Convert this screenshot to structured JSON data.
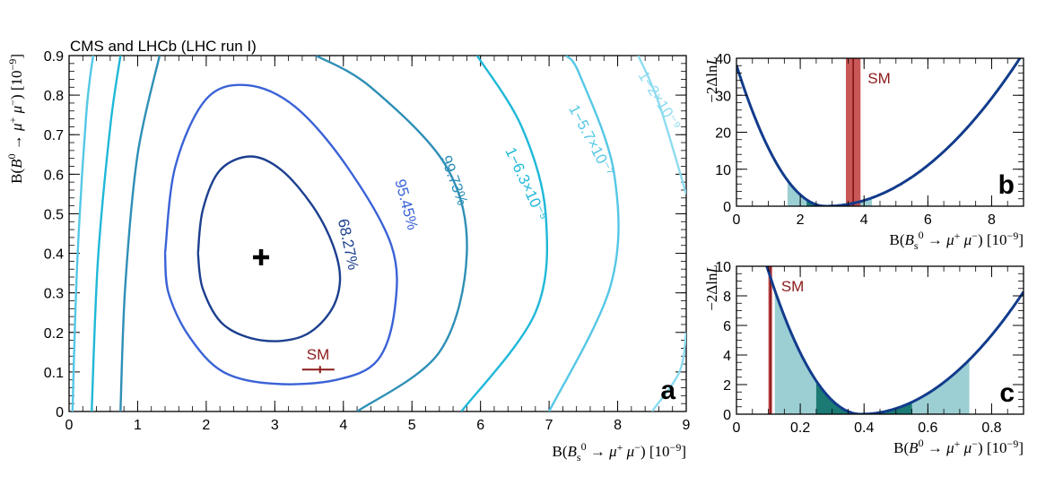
{
  "title": "CMS and LHCb (LHC run I)",
  "colors": {
    "c68": "#1c3f8f",
    "c95": "#3a62d6",
    "c99": "#2e8fb6",
    "c63": "#1fb8d8",
    "c57": "#55c7e6",
    "c2": "#8ddcf0",
    "curve": "#123c8c",
    "sm": "#c0393b",
    "band1": "#9ccfd3",
    "band2": "#1b7a73"
  },
  "chart_data": [
    {
      "id": "a",
      "type": "contour",
      "panel_label": "a",
      "xlabel": "B(B_s^0 → μ⁺ μ⁻) [10⁻⁹]",
      "ylabel": "B(B⁰ → μ⁺ μ⁻) [10⁻⁹]",
      "xlim": [
        0,
        9
      ],
      "ylim": [
        0,
        0.9
      ],
      "xticks": [
        "0",
        "1",
        "2",
        "3",
        "4",
        "5",
        "6",
        "7",
        "8",
        "9"
      ],
      "yticks": [
        "0",
        "0.1",
        "0.2",
        "0.3",
        "0.4",
        "0.5",
        "0.6",
        "0.7",
        "0.8",
        "0.9"
      ],
      "best_fit": {
        "x": 2.8,
        "y": 0.39
      },
      "sm_point": {
        "x": 3.66,
        "y": 0.106,
        "label": "SM"
      },
      "contours": [
        {
          "label": "68.27%",
          "color": "#1c3f8f",
          "label_pos": {
            "x": 4.0,
            "y": 0.42
          },
          "rot": 78,
          "points": [
            [
              1.88,
              0.4
            ],
            [
              1.95,
              0.51
            ],
            [
              2.2,
              0.61
            ],
            [
              2.65,
              0.645
            ],
            [
              3.1,
              0.61
            ],
            [
              3.55,
              0.52
            ],
            [
              3.85,
              0.42
            ],
            [
              3.95,
              0.33
            ],
            [
              3.8,
              0.25
            ],
            [
              3.4,
              0.19
            ],
            [
              2.8,
              0.18
            ],
            [
              2.25,
              0.22
            ],
            [
              1.95,
              0.31
            ],
            [
              1.88,
              0.4
            ]
          ]
        },
        {
          "label": "95.45%",
          "color": "#3a62d6",
          "label_pos": {
            "x": 4.85,
            "y": 0.52
          },
          "rot": 75,
          "points": [
            [
              1.4,
              0.4
            ],
            [
              1.55,
              0.62
            ],
            [
              2.0,
              0.79
            ],
            [
              2.6,
              0.825
            ],
            [
              3.3,
              0.77
            ],
            [
              4.05,
              0.62
            ],
            [
              4.7,
              0.42
            ],
            [
              4.75,
              0.26
            ],
            [
              4.5,
              0.13
            ],
            [
              3.9,
              0.08
            ],
            [
              3.0,
              0.07
            ],
            [
              2.25,
              0.1
            ],
            [
              1.75,
              0.19
            ],
            [
              1.45,
              0.3
            ],
            [
              1.4,
              0.4
            ]
          ]
        },
        {
          "label": "99.73%",
          "color": "#2e8fb6",
          "label_pos": {
            "x": 5.55,
            "y": 0.58
          },
          "rot": 70,
          "points": [
            [
              0.75,
              0
            ],
            [
              0.82,
              0.32
            ],
            [
              1.0,
              0.65
            ],
            [
              1.32,
              0.9
            ]
          ],
          "points2": [
            [
              4.2,
              0
            ],
            [
              5.4,
              0.15
            ],
            [
              5.8,
              0.4
            ],
            [
              5.5,
              0.62
            ],
            [
              4.4,
              0.82
            ],
            [
              3.6,
              0.9
            ]
          ]
        },
        {
          "label": "1−6.3×10⁻⁵",
          "color": "#1fb8d8",
          "label_pos": {
            "x": 6.6,
            "y": 0.57
          },
          "rot": 65,
          "points": [
            [
              0.33,
              0
            ],
            [
              0.42,
              0.38
            ],
            [
              0.6,
              0.72
            ],
            [
              0.75,
              0.9
            ]
          ],
          "points2": [
            [
              5.72,
              0
            ],
            [
              6.8,
              0.25
            ],
            [
              6.95,
              0.5
            ],
            [
              6.6,
              0.72
            ],
            [
              5.95,
              0.9
            ]
          ]
        },
        {
          "label": "1−5.7×10⁻⁷",
          "color": "#55c7e6",
          "label_pos": {
            "x": 7.55,
            "y": 0.68
          },
          "rot": 62,
          "points": [
            [
              0.05,
              0
            ],
            [
              0.12,
              0.38
            ],
            [
              0.25,
              0.75
            ],
            [
              0.35,
              0.9
            ]
          ],
          "points2": [
            [
              7.0,
              0
            ],
            [
              7.9,
              0.32
            ],
            [
              7.95,
              0.6
            ],
            [
              7.45,
              0.85
            ],
            [
              7.25,
              0.9
            ]
          ]
        },
        {
          "label": "1−2×10⁻⁹",
          "color": "#8ddcf0",
          "label_pos": {
            "x": 8.55,
            "y": 0.78
          },
          "rot": 58,
          "points": [
            [
              8.5,
              0
            ],
            [
              8.9,
              0.1
            ],
            [
              9.0,
              0.2
            ]
          ],
          "points2": [
            [
              9.0,
              0.55
            ],
            [
              8.6,
              0.78
            ],
            [
              8.3,
              0.9
            ]
          ]
        }
      ]
    },
    {
      "id": "b",
      "type": "line",
      "panel_label": "b",
      "xlabel": "B(B_s^0 → μ⁺ μ⁻) [10⁻⁹]",
      "ylabel": "−2ΔlnL",
      "xlim": [
        0,
        9
      ],
      "ylim": [
        0,
        40
      ],
      "xticks": [
        "0",
        "2",
        "4",
        "6",
        "8"
      ],
      "yticks": [
        "0",
        "10",
        "20",
        "30",
        "40"
      ],
      "min": {
        "x": 2.8,
        "y": 0
      },
      "curve_left_scale": 4.86,
      "curve_right_scale": 1.08,
      "sm_band": {
        "center": 3.66,
        "half_width": 0.23,
        "label": "SM"
      },
      "band_1sigma": [
        2.2,
        3.5
      ],
      "band_2sigma": [
        1.6,
        4.25
      ]
    },
    {
      "id": "c",
      "type": "line",
      "panel_label": "c",
      "xlabel": "B(B⁰ → μ⁺ μ⁻) [10⁻⁹]",
      "ylabel": "−2ΔlnL",
      "xlim": [
        0,
        0.9
      ],
      "ylim": [
        0,
        10
      ],
      "xticks": [
        "0",
        "0.2",
        "0.4",
        "0.6",
        "0.8"
      ],
      "yticks": [
        "0",
        "2",
        "4",
        "6",
        "8",
        "10"
      ],
      "min": {
        "x": 0.39,
        "y": 0
      },
      "curve_left_scale": 115,
      "curve_right_scale": 31.8,
      "sm_band": {
        "center": 0.106,
        "half_width": 0.006,
        "label": "SM"
      },
      "band_1sigma": [
        0.25,
        0.55
      ],
      "band_2sigma": [
        0.12,
        0.73
      ]
    }
  ]
}
